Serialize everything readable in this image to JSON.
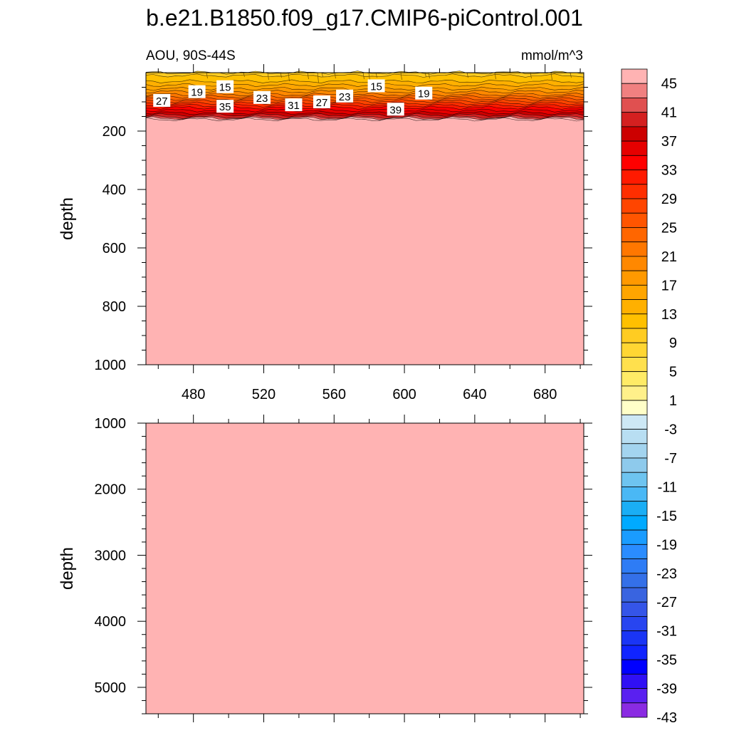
{
  "title": "b.e21.B1850.f09_g17.CMIP6-piControl.001",
  "panel_label_left": "AOU, 90S-44S",
  "panel_label_right": "mmol/m^3",
  "chart_data": [
    {
      "type": "heatmap",
      "panel": "upper",
      "title": "",
      "left_label": "AOU, 90S-44S",
      "right_label": "mmol/m^3",
      "xlabel": "",
      "ylabel": "depth",
      "xlim": [
        453,
        702
      ],
      "ylim": [
        1000,
        0
      ],
      "x_ticks": [
        480,
        520,
        560,
        600,
        640,
        680
      ],
      "y_ticks": [
        200,
        400,
        600,
        800,
        1000
      ],
      "description_fill": "below ~150 m the field saturates above 45 (top color)",
      "surface_profile": [
        {
          "depth": 0,
          "value": 12
        },
        {
          "depth": 30,
          "value": 15
        },
        {
          "depth": 55,
          "value": 19
        },
        {
          "depth": 75,
          "value": 23
        },
        {
          "depth": 90,
          "value": 27
        },
        {
          "depth": 105,
          "value": 31
        },
        {
          "depth": 120,
          "value": 35
        },
        {
          "depth": 138,
          "value": 39
        },
        {
          "depth": 152,
          "value": 43
        },
        {
          "depth": 160,
          "value": 47
        }
      ],
      "contour_labels": [
        {
          "x": 462,
          "depth": 95,
          "text": "27"
        },
        {
          "x": 482,
          "depth": 65,
          "text": "19"
        },
        {
          "x": 498,
          "depth": 48,
          "text": "15"
        },
        {
          "x": 498,
          "depth": 115,
          "text": "35"
        },
        {
          "x": 519,
          "depth": 85,
          "text": "23"
        },
        {
          "x": 537,
          "depth": 110,
          "text": "31"
        },
        {
          "x": 553,
          "depth": 100,
          "text": "27"
        },
        {
          "x": 566,
          "depth": 80,
          "text": "23"
        },
        {
          "x": 584,
          "depth": 45,
          "text": "15"
        },
        {
          "x": 595,
          "depth": 125,
          "text": "39"
        },
        {
          "x": 611,
          "depth": 70,
          "text": "19"
        }
      ]
    },
    {
      "type": "heatmap",
      "panel": "lower",
      "title": "",
      "xlabel": "",
      "ylabel": "depth",
      "xlim": [
        453,
        702
      ],
      "ylim": [
        5400,
        1000
      ],
      "y_ticks": [
        1000,
        2000,
        3000,
        4000,
        5000
      ],
      "fill_value": ">45"
    }
  ],
  "colorbar": {
    "labels": [
      "45",
      "41",
      "37",
      "33",
      "29",
      "25",
      "21",
      "17",
      "13",
      "9",
      "5",
      "1",
      "-3",
      "-7",
      "-11",
      "-15",
      "-19",
      "-23",
      "-27",
      "-31",
      "-35",
      "-39",
      "-43"
    ],
    "colors_top_to_bottom": [
      "#ffb3b3",
      "#f08080",
      "#e05050",
      "#d42020",
      "#cc0000",
      "#e60000",
      "#ff0000",
      "#ff1a00",
      "#ff2e00",
      "#ff4500",
      "#ff5500",
      "#ff6600",
      "#ff7700",
      "#ff8800",
      "#ff9900",
      "#ffa500",
      "#ffb000",
      "#ffc000",
      "#ffcc22",
      "#ffd633",
      "#ffe04d",
      "#ffeb66",
      "#fff08a",
      "#ffffc8",
      "#cde8f5",
      "#b8def2",
      "#a3d4ef",
      "#8ecaec",
      "#6ec4f0",
      "#4ab8f5",
      "#1aaef5",
      "#00aaff",
      "#1a9cff",
      "#2a8cff",
      "#2e7cf5",
      "#3470e8",
      "#3964e0",
      "#3555e8",
      "#2845f0",
      "#1a35f5",
      "#1024ff",
      "#0000ff",
      "#3010f5",
      "#5a20f0",
      "#8a2be2"
    ]
  }
}
